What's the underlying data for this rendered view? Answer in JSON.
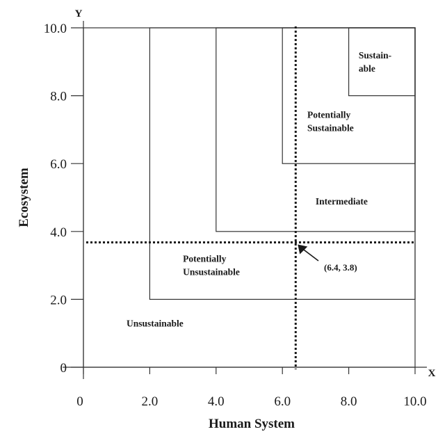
{
  "chart_data": {
    "type": "diagram",
    "axis_letters": {
      "x": "X",
      "y": "Y"
    },
    "xlabel": "Human System",
    "ylabel": "Ecosystem",
    "xlim": [
      0,
      10
    ],
    "ylim": [
      0,
      10
    ],
    "x_ticks": [
      {
        "value": 0,
        "label": "0"
      },
      {
        "value": 2,
        "label": "2.0"
      },
      {
        "value": 4,
        "label": "4.0"
      },
      {
        "value": 6,
        "label": "6.0"
      },
      {
        "value": 8,
        "label": "8.0"
      },
      {
        "value": 10,
        "label": "10.0"
      }
    ],
    "y_ticks": [
      {
        "value": 0,
        "label": "0"
      },
      {
        "value": 2,
        "label": "2.0"
      },
      {
        "value": 4,
        "label": "4.0"
      },
      {
        "value": 6,
        "label": "6.0"
      },
      {
        "value": 8,
        "label": "8.0"
      },
      {
        "value": 10,
        "label": "10.0"
      }
    ],
    "regions": [
      {
        "name": "Unsustainable",
        "x": [
          0,
          10
        ],
        "y": [
          0,
          10
        ],
        "lines": [
          "Unsustainable"
        ],
        "label_at": [
          1.3,
          1.2
        ]
      },
      {
        "name": "Potentially Unsustainable",
        "x": [
          2,
          10
        ],
        "y": [
          2,
          10
        ],
        "lines": [
          "Potentially",
          "Unsustainable"
        ],
        "label_at": [
          3.0,
          3.1
        ]
      },
      {
        "name": "Intermediate",
        "x": [
          4,
          10
        ],
        "y": [
          4,
          10
        ],
        "lines": [
          "Intermediate"
        ],
        "label_at": [
          7.0,
          4.8
        ]
      },
      {
        "name": "Potentially Sustainable",
        "x": [
          6,
          10
        ],
        "y": [
          6,
          10
        ],
        "lines": [
          "Potentially",
          "Sustainable"
        ],
        "label_at": [
          6.75,
          7.35
        ]
      },
      {
        "name": "Sustainable",
        "x": [
          8,
          10
        ],
        "y": [
          8,
          10
        ],
        "lines": [
          "Sustain-",
          "able"
        ],
        "label_at": [
          8.3,
          9.1
        ]
      }
    ],
    "point": {
      "x": 6.4,
      "y": 3.8,
      "label": "(6.4, 3.8)"
    }
  }
}
